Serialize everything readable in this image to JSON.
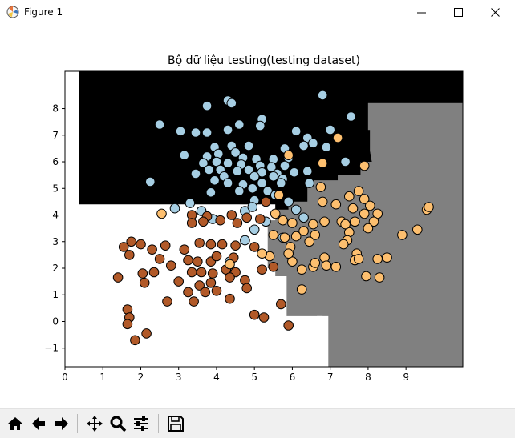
{
  "window": {
    "title": "Figure 1",
    "icon": "matplotlib-icon"
  },
  "window_controls": [
    "minimize-icon",
    "maximize-icon",
    "close-icon"
  ],
  "toolbar": {
    "buttons": [
      "home-icon",
      "back-arrow-icon",
      "forward-arrow-icon",
      "pan-icon",
      "zoom-icon",
      "configure-subplots-icon",
      "save-icon"
    ]
  },
  "colors": {
    "class_0": "#a6cee3",
    "class_1": "#b15928",
    "class_2": "#fdbf6f",
    "region_top": "#000000",
    "region_right": "#808080",
    "region_left": "#ffffff"
  },
  "chart_data": {
    "type": "scatter",
    "title": "Bộ dữ liệu testing(testing dataset)",
    "xlabel": "",
    "ylabel": "",
    "xlim": [
      0.0,
      10.5
    ],
    "ylim": [
      -1.7,
      9.4
    ],
    "xticks": [
      0,
      1,
      2,
      3,
      4,
      5,
      6,
      7,
      8,
      9
    ],
    "yticks": [
      -1,
      0,
      1,
      2,
      3,
      4,
      5,
      6,
      7,
      8
    ],
    "grid": false,
    "decision_regions": "Background shows classifier regions: black (upper area, y > ~4.4), gray (right area, x > ~5.5), white (remaining lower-left area).",
    "series": [
      {
        "color": "#a6cee3",
        "points": [
          [
            4.3,
            8.3
          ],
          [
            4.4,
            8.2
          ],
          [
            3.75,
            8.1
          ],
          [
            6.8,
            8.5
          ],
          [
            7.55,
            7.7
          ],
          [
            2.5,
            7.4
          ],
          [
            3.05,
            7.15
          ],
          [
            3.45,
            7.1
          ],
          [
            3.75,
            7.1
          ],
          [
            4.3,
            7.2
          ],
          [
            4.6,
            7.4
          ],
          [
            5.2,
            7.6
          ],
          [
            5.15,
            7.35
          ],
          [
            4.85,
            6.6
          ],
          [
            4.4,
            6.6
          ],
          [
            3.95,
            6.55
          ],
          [
            6.1,
            7.15
          ],
          [
            6.4,
            6.9
          ],
          [
            7.0,
            7.2
          ],
          [
            5.8,
            6.5
          ],
          [
            6.3,
            6.6
          ],
          [
            6.55,
            6.7
          ],
          [
            6.9,
            6.55
          ],
          [
            3.15,
            6.25
          ],
          [
            3.75,
            6.2
          ],
          [
            4.05,
            6.3
          ],
          [
            4.5,
            6.35
          ],
          [
            4.7,
            6.15
          ],
          [
            5.05,
            6.1
          ],
          [
            5.5,
            6.1
          ],
          [
            5.9,
            6.15
          ],
          [
            3.65,
            5.95
          ],
          [
            4.0,
            6.0
          ],
          [
            4.3,
            5.95
          ],
          [
            4.65,
            5.9
          ],
          [
            5.15,
            5.85
          ],
          [
            5.45,
            5.8
          ],
          [
            5.8,
            5.85
          ],
          [
            3.8,
            5.7
          ],
          [
            4.1,
            5.7
          ],
          [
            4.55,
            5.65
          ],
          [
            4.85,
            5.7
          ],
          [
            5.2,
            5.6
          ],
          [
            5.6,
            5.55
          ],
          [
            6.05,
            5.6
          ],
          [
            6.4,
            5.65
          ],
          [
            7.4,
            6.0
          ],
          [
            3.45,
            5.55
          ],
          [
            4.2,
            5.45
          ],
          [
            5.0,
            5.45
          ],
          [
            5.5,
            5.45
          ],
          [
            5.75,
            5.35
          ],
          [
            2.25,
            5.25
          ],
          [
            3.95,
            5.3
          ],
          [
            4.3,
            5.2
          ],
          [
            4.7,
            5.15
          ],
          [
            5.2,
            5.2
          ],
          [
            5.7,
            5.2
          ],
          [
            6.45,
            5.2
          ],
          [
            3.85,
            4.85
          ],
          [
            4.6,
            4.9
          ],
          [
            4.95,
            5.0
          ],
          [
            5.35,
            4.9
          ],
          [
            5.55,
            4.75
          ],
          [
            5.0,
            4.55
          ],
          [
            3.3,
            4.45
          ],
          [
            2.9,
            4.25
          ],
          [
            3.6,
            4.15
          ],
          [
            4.75,
            4.15
          ],
          [
            4.95,
            4.3
          ],
          [
            5.9,
            4.5
          ],
          [
            6.1,
            4.2
          ],
          [
            3.9,
            3.85
          ],
          [
            5.3,
            3.75
          ],
          [
            6.3,
            3.9
          ],
          [
            5.0,
            3.45
          ],
          [
            4.75,
            3.05
          ],
          [
            5.75,
            3.15
          ],
          [
            4.35,
            2.25
          ]
        ]
      },
      {
        "color": "#b15928",
        "points": [
          [
            3.35,
            4.0
          ],
          [
            3.75,
            3.95
          ],
          [
            4.4,
            4.0
          ],
          [
            4.8,
            3.9
          ],
          [
            3.35,
            3.7
          ],
          [
            3.65,
            3.75
          ],
          [
            4.1,
            3.8
          ],
          [
            4.55,
            3.7
          ],
          [
            5.15,
            3.85
          ],
          [
            5.3,
            4.5
          ],
          [
            1.75,
            3.0
          ],
          [
            2.0,
            2.9
          ],
          [
            1.55,
            2.8
          ],
          [
            1.7,
            2.5
          ],
          [
            2.3,
            2.7
          ],
          [
            2.65,
            2.85
          ],
          [
            2.5,
            2.35
          ],
          [
            3.15,
            2.7
          ],
          [
            3.55,
            2.95
          ],
          [
            3.85,
            2.9
          ],
          [
            4.15,
            2.9
          ],
          [
            4.5,
            2.85
          ],
          [
            5.0,
            2.8
          ],
          [
            2.8,
            2.1
          ],
          [
            3.25,
            2.3
          ],
          [
            3.5,
            2.25
          ],
          [
            3.85,
            2.25
          ],
          [
            4.0,
            2.45
          ],
          [
            4.45,
            2.4
          ],
          [
            2.05,
            1.8
          ],
          [
            2.35,
            1.85
          ],
          [
            3.35,
            1.85
          ],
          [
            3.6,
            1.85
          ],
          [
            3.9,
            1.8
          ],
          [
            4.25,
            1.95
          ],
          [
            4.5,
            1.85
          ],
          [
            5.2,
            1.95
          ],
          [
            1.4,
            1.65
          ],
          [
            2.1,
            1.45
          ],
          [
            3.0,
            1.5
          ],
          [
            3.55,
            1.35
          ],
          [
            3.85,
            1.45
          ],
          [
            4.35,
            1.65
          ],
          [
            4.75,
            1.55
          ],
          [
            5.5,
            2.05
          ],
          [
            3.25,
            1.1
          ],
          [
            3.7,
            1.1
          ],
          [
            4.0,
            1.15
          ],
          [
            4.8,
            1.25
          ],
          [
            2.7,
            0.75
          ],
          [
            3.4,
            0.75
          ],
          [
            4.35,
            0.85
          ],
          [
            5.7,
            0.65
          ],
          [
            1.65,
            0.45
          ],
          [
            1.7,
            0.15
          ],
          [
            1.65,
            -0.1
          ],
          [
            2.15,
            -0.45
          ],
          [
            1.85,
            -0.7
          ],
          [
            5.0,
            0.25
          ],
          [
            5.25,
            0.15
          ],
          [
            5.9,
            -0.15
          ]
        ]
      },
      {
        "color": "#fdbf6f",
        "points": [
          [
            7.2,
            6.9
          ],
          [
            6.8,
            5.95
          ],
          [
            7.9,
            5.85
          ],
          [
            6.75,
            5.05
          ],
          [
            5.9,
            6.25
          ],
          [
            5.65,
            4.75
          ],
          [
            7.75,
            4.9
          ],
          [
            7.9,
            4.6
          ],
          [
            7.5,
            4.7
          ],
          [
            7.15,
            4.4
          ],
          [
            6.8,
            4.5
          ],
          [
            7.6,
            4.25
          ],
          [
            8.05,
            4.35
          ],
          [
            8.25,
            4.05
          ],
          [
            7.9,
            4.05
          ],
          [
            8.15,
            3.75
          ],
          [
            7.65,
            3.75
          ],
          [
            7.3,
            3.75
          ],
          [
            6.85,
            3.75
          ],
          [
            6.55,
            3.65
          ],
          [
            6.0,
            3.7
          ],
          [
            5.75,
            3.8
          ],
          [
            5.55,
            4.05
          ],
          [
            6.3,
            3.4
          ],
          [
            7.5,
            3.35
          ],
          [
            8.0,
            3.5
          ],
          [
            5.8,
            3.15
          ],
          [
            6.1,
            3.2
          ],
          [
            5.5,
            3.25
          ],
          [
            6.6,
            3.25
          ],
          [
            7.45,
            3.05
          ],
          [
            7.35,
            2.9
          ],
          [
            6.45,
            3.0
          ],
          [
            5.95,
            2.8
          ],
          [
            8.9,
            3.25
          ],
          [
            9.3,
            3.45
          ],
          [
            9.55,
            4.2
          ],
          [
            9.6,
            4.3
          ],
          [
            8.5,
            2.4
          ],
          [
            8.25,
            2.35
          ],
          [
            7.7,
            2.55
          ],
          [
            7.65,
            2.3
          ],
          [
            6.85,
            2.4
          ],
          [
            5.4,
            2.45
          ],
          [
            5.2,
            2.55
          ],
          [
            6.55,
            2.05
          ],
          [
            6.25,
            1.95
          ],
          [
            6.9,
            2.1
          ],
          [
            7.15,
            2.05
          ],
          [
            7.95,
            1.7
          ],
          [
            8.3,
            1.65
          ],
          [
            6.25,
            1.2
          ],
          [
            6.0,
            2.25
          ],
          [
            5.9,
            2.55
          ],
          [
            2.55,
            4.05
          ],
          [
            4.35,
            2.15
          ],
          [
            6.6,
            2.2
          ],
          [
            7.75,
            2.35
          ],
          [
            7.4,
            3.65
          ]
        ]
      }
    ]
  }
}
